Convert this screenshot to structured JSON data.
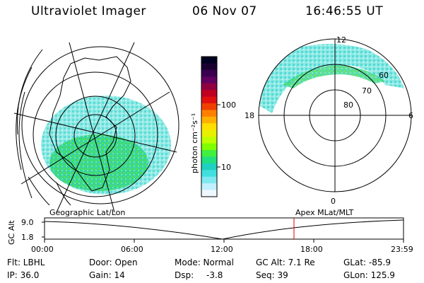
{
  "header": {
    "instrument": "Ultraviolet Imager",
    "date": "06 Nov 07",
    "time": "16:46:55 UT"
  },
  "colorbar": {
    "unit_label": "photon cm⁻²s⁻¹",
    "ticks": [
      "100",
      "10"
    ],
    "colors": [
      "#000020",
      "#1a0030",
      "#3a0050",
      "#600060",
      "#900040",
      "#c00020",
      "#e01010",
      "#f04000",
      "#ff8000",
      "#ffb000",
      "#ffe000",
      "#e8f000",
      "#c0ff00",
      "#80ff00",
      "#40f040",
      "#20e080",
      "#20d0c0",
      "#40e0e0",
      "#80e8f0",
      "#c0f0ff",
      "#f0f8ff"
    ]
  },
  "left_map": {
    "label": "Geographic Lat/Lon"
  },
  "right_map": {
    "label": "Apex MLat/MLT",
    "mlt_labels": [
      "12",
      "18",
      "6",
      "0"
    ],
    "lat_labels": [
      "60",
      "70",
      "80"
    ]
  },
  "timeline": {
    "axis_label": "GC Alt",
    "y_ticks": [
      "9.0",
      "1.8"
    ],
    "x_ticks": [
      "00:00",
      "06:00",
      "12:00",
      "18:00",
      "23:59"
    ],
    "current_time_color": "#e00000"
  },
  "status": {
    "flt": "Flt: LBHL",
    "door": "Door: Open",
    "mode": "Mode: Normal",
    "gc_alt": "GC Alt: 7.1 Re",
    "glat": "GLat: -85.9",
    "ip": "IP: 36.0",
    "gain": "Gain: 14",
    "dsp_label": "Dsp:",
    "dsp_value": "-3.8",
    "seq": "Seq: 39",
    "glon": "GLon: 125.9"
  }
}
